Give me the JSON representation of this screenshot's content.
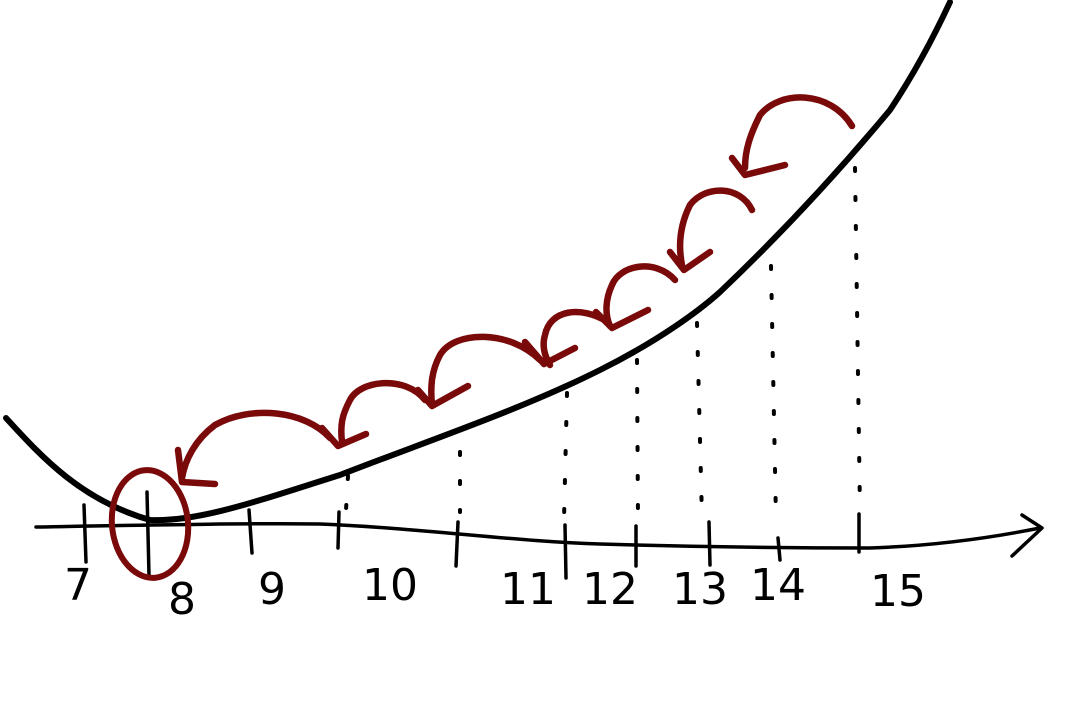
{
  "colors": {
    "ink": "#000000",
    "accent": "#7a0a0a",
    "background": "#ffffff"
  },
  "axis": {
    "ticks": [
      "7",
      "8",
      "9",
      "10",
      "11",
      "12",
      "13",
      "14",
      "15"
    ]
  },
  "highlight": {
    "circled_tick": "8"
  }
}
